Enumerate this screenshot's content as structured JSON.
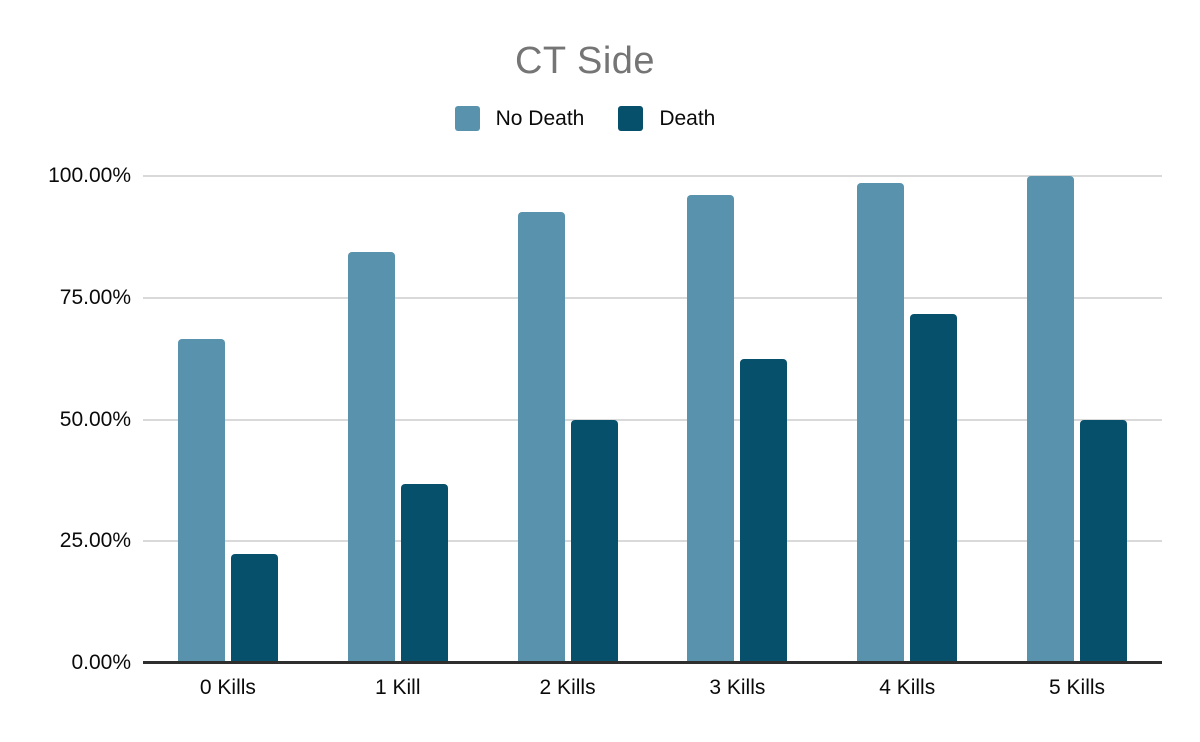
{
  "chart_data": {
    "type": "bar",
    "title": "CT Side",
    "categories": [
      "0 Kills",
      "1 Kill",
      "2 Kills",
      "3 Kills",
      "4 Kills",
      "5 Kills"
    ],
    "series": [
      {
        "name": "No Death",
        "color": "#5892ad",
        "values": [
          66.5,
          84.5,
          92.7,
          96.0,
          98.5,
          100.0
        ]
      },
      {
        "name": "Death",
        "color": "#06506c",
        "values": [
          22.3,
          36.8,
          50.0,
          62.5,
          71.7,
          50.0
        ]
      }
    ],
    "xlabel": "",
    "ylabel": "",
    "y_axis": {
      "min": 0,
      "max": 100,
      "ticks": [
        {
          "label": "0.00%",
          "value": 0
        },
        {
          "label": "25.00%",
          "value": 25
        },
        {
          "label": "50.00%",
          "value": 50
        },
        {
          "label": "75.00%",
          "value": 75
        },
        {
          "label": "100.00%",
          "value": 100
        }
      ]
    },
    "legend_position": "top",
    "grid": true,
    "colors": {
      "background": "#ffffff",
      "title_text": "#757575",
      "axis_text": "#0a0a0a",
      "gridline": "#d9d9d9",
      "baseline": "#2e2e2e"
    }
  }
}
